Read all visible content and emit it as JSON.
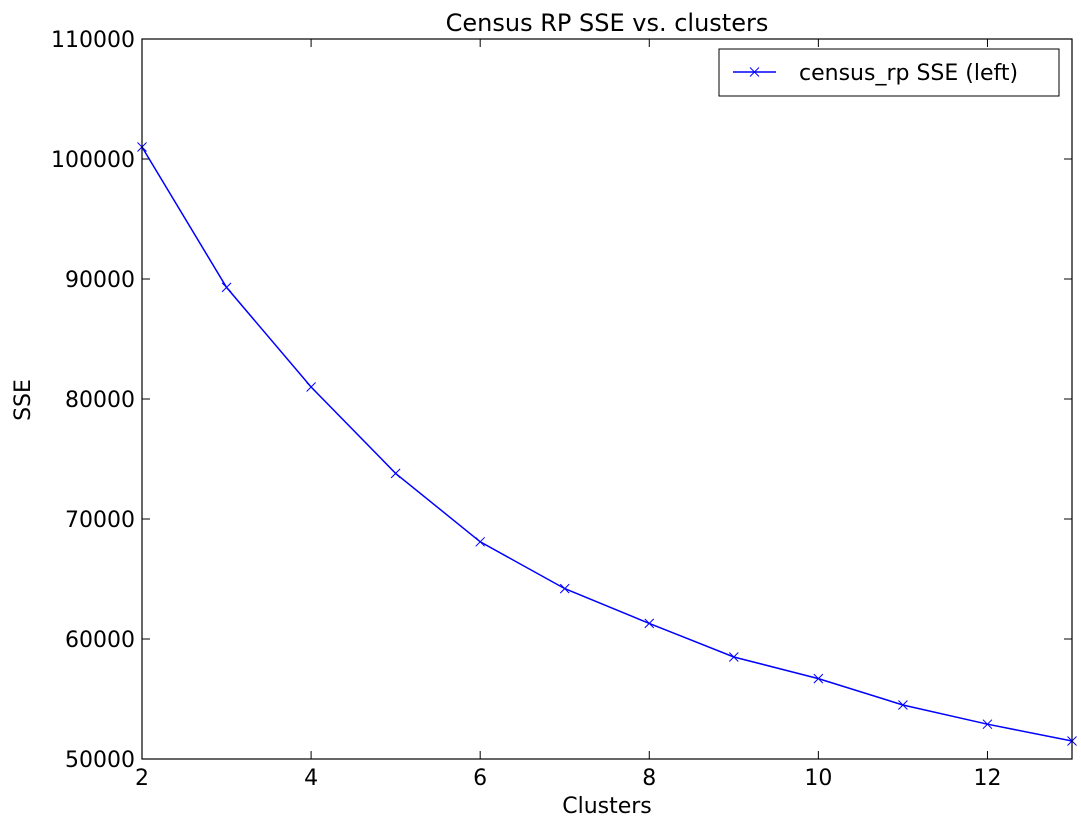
{
  "chart_data": {
    "type": "line",
    "title": "Census RP SSE vs. clusters",
    "xlabel": "Clusters",
    "ylabel": "SSE",
    "xlim": [
      2,
      13
    ],
    "ylim": [
      50000,
      110000
    ],
    "xticks": [
      2,
      4,
      6,
      8,
      10,
      12
    ],
    "yticks": [
      50000,
      60000,
      70000,
      80000,
      90000,
      100000,
      110000
    ],
    "grid": false,
    "legend_position": "top-right",
    "series": [
      {
        "name": "census_rp SSE (left)",
        "color": "#0000ff",
        "marker": "x",
        "x": [
          2,
          3,
          4,
          5,
          6,
          7,
          8,
          9,
          10,
          11,
          12,
          13
        ],
        "y": [
          101000,
          89300,
          81000,
          73800,
          68100,
          64200,
          61300,
          58500,
          56700,
          54500,
          52900,
          51500
        ]
      }
    ]
  }
}
